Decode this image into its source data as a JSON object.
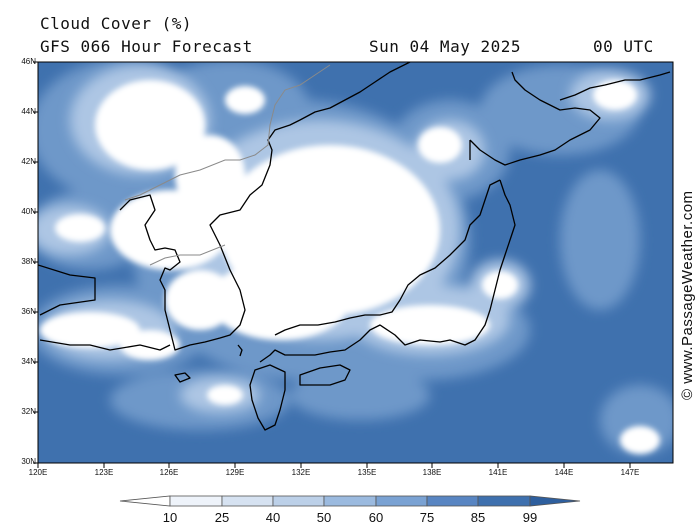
{
  "header": {
    "title_line1": "Cloud Cover (%)",
    "title_line2": "GFS 066 Hour Forecast",
    "date": "Sun 04 May 2025",
    "time": "00 UTC"
  },
  "map": {
    "lat_labels": [
      "46N",
      "44N",
      "42N",
      "40N",
      "38N",
      "36N",
      "34N",
      "32N",
      "30N"
    ],
    "lon_labels": [
      "120E",
      "123E",
      "126E",
      "129E",
      "132E",
      "135E",
      "138E",
      "141E",
      "144E",
      "147E"
    ],
    "colors": {
      "ocean_cloudy": "#3e70ae",
      "mid_cloud": "#6d97c9",
      "light_cloud": "#aac3e2",
      "clear": "#ffffff",
      "coastline": "#000000",
      "border": "#888888"
    }
  },
  "colorbar": {
    "ticks": [
      "10",
      "25",
      "40",
      "50",
      "60",
      "75",
      "85",
      "99"
    ],
    "colors": [
      "#ffffff",
      "#eef3fa",
      "#d6e2f1",
      "#bcd0e8",
      "#9bbadf",
      "#7aa2d3",
      "#5885c2",
      "#3e70ae",
      "#2e5f9e"
    ]
  },
  "credit": "© www.PassageWeather.com"
}
